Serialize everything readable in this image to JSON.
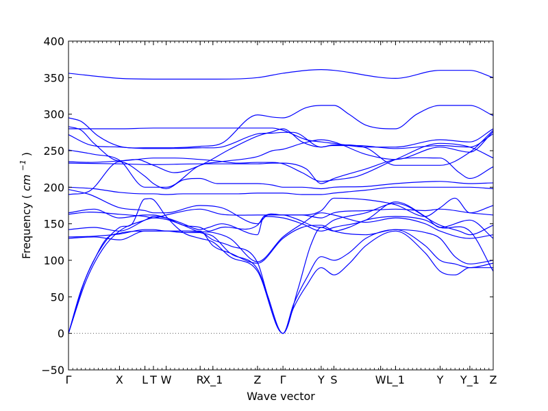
{
  "chart_data": {
    "type": "line",
    "title": "",
    "xlabel": "Wave vector",
    "ylabel": "Frequency",
    "ylabel_unit_base": "cm",
    "ylabel_unit_exp": "−1",
    "ylim": [
      -50,
      400
    ],
    "y_ticks": [
      -50,
      0,
      50,
      100,
      150,
      200,
      250,
      300,
      350,
      400
    ],
    "k_points": [
      {
        "label": "Γ",
        "x": 0.0
      },
      {
        "label": "X",
        "x": 12.0
      },
      {
        "label": "L",
        "x": 18.0
      },
      {
        "label": "T",
        "x": 20.0
      },
      {
        "label": "W",
        "x": 23.0
      },
      {
        "label": "R",
        "x": 31.0
      },
      {
        "label": "X_1",
        "x": 34.0
      },
      {
        "label": "Z",
        "x": 44.5
      },
      {
        "label": "Γ",
        "x": 50.5
      },
      {
        "label": "Y",
        "x": 59.5
      },
      {
        "label": "S",
        "x": 62.5
      },
      {
        "label": "W",
        "x": 73.5
      },
      {
        "label": "L_1",
        "x": 77.0
      },
      {
        "label": "Y",
        "x": 87.5
      },
      {
        "label": "Y_1",
        "x": 94.5
      },
      {
        "label": "Z",
        "x": 100.0
      }
    ],
    "xlim": [
      0,
      100
    ],
    "zero_line": 0,
    "line_color": "#0000ff",
    "zero_line_color": "#555555",
    "series": [
      {
        "x": [
          0,
          12,
          20,
          31,
          44.5,
          50.5,
          59.5,
          62.5,
          77,
          87.5,
          94.5,
          100
        ],
        "values": [
          356,
          349,
          348,
          348,
          350,
          356,
          361,
          360,
          349,
          360,
          360,
          350
        ]
      },
      {
        "x": [
          0,
          3,
          7,
          12,
          18,
          23,
          31,
          36,
          44.5,
          48,
          50.5,
          56,
          59.5,
          62.5,
          66,
          70,
          77,
          82,
          87.5,
          94.5,
          100
        ],
        "values": [
          295,
          290,
          270,
          256,
          254,
          254,
          256,
          260,
          299,
          296,
          295,
          309,
          312,
          312,
          300,
          285,
          280,
          300,
          312,
          312,
          298
        ]
      },
      {
        "x": [
          0,
          12,
          20,
          31,
          44.5,
          48,
          50.5,
          56,
          59.5,
          62.5,
          70,
          77,
          87.5,
          94.5,
          100
        ],
        "values": [
          280,
          280,
          281,
          281,
          281,
          281,
          278,
          265,
          262,
          260,
          255,
          255,
          265,
          262,
          280
        ]
      },
      {
        "x": [
          0,
          3,
          6,
          12,
          16,
          20,
          25,
          31,
          35,
          40,
          44.5,
          48,
          50.5,
          55,
          59.5,
          62.5,
          68,
          77,
          87.5,
          94.5,
          100
        ],
        "values": [
          283,
          278,
          260,
          236,
          238,
          240,
          240,
          238,
          236,
          233,
          234,
          234,
          232,
          220,
          208,
          210,
          215,
          238,
          260,
          255,
          240
        ]
      },
      {
        "x": [
          0,
          5,
          12,
          18,
          23,
          31,
          36,
          44.5,
          48,
          50.5,
          53,
          59.5,
          62,
          68,
          77,
          87.5,
          94.5,
          100
        ],
        "values": [
          272,
          258,
          255,
          253,
          253,
          254,
          255,
          273,
          274,
          275,
          275,
          255,
          257,
          257,
          253,
          257,
          255,
          273
        ]
      },
      {
        "x": [
          0,
          6,
          12,
          18,
          23,
          31,
          36,
          44.5,
          48,
          50.5,
          55,
          59.5,
          62.5,
          70,
          77,
          87.5,
          94.5,
          100
        ],
        "values": [
          251,
          245,
          237,
          200,
          200,
          230,
          235,
          242,
          250,
          252,
          260,
          265,
          262,
          245,
          238,
          255,
          248,
          276
        ]
      },
      {
        "x": [
          0,
          12,
          20,
          31,
          44.5,
          48,
          50.5,
          56,
          59.5,
          62.5,
          70,
          77,
          87.5,
          92,
          94.5,
          100
        ],
        "values": [
          233,
          232,
          231,
          232,
          232,
          233,
          233,
          225,
          205,
          212,
          225,
          238,
          240,
          220,
          212,
          228
        ]
      },
      {
        "x": [
          0,
          5,
          12,
          16,
          20,
          25,
          31,
          38,
          44.5,
          48,
          50.5,
          55,
          59.5,
          62.5,
          70,
          77,
          87.5,
          94.5,
          100
        ],
        "values": [
          235,
          234,
          236,
          238,
          230,
          220,
          230,
          252,
          270,
          276,
          280,
          262,
          255,
          258,
          254,
          230,
          230,
          248,
          278
        ]
      },
      {
        "x": [
          0,
          5,
          12,
          18,
          20,
          23,
          27,
          31,
          35,
          44.5,
          48,
          50.5,
          55,
          59.5,
          62.5,
          70,
          77,
          87.5,
          94.5,
          100
        ],
        "values": [
          190,
          195,
          235,
          215,
          205,
          198,
          210,
          212,
          205,
          205,
          203,
          200,
          200,
          198,
          200,
          201,
          205,
          208,
          205,
          206
        ]
      },
      {
        "x": [
          0,
          6,
          12,
          18,
          20,
          23,
          27,
          31,
          40,
          44.5,
          50.5,
          55,
          59.5,
          62.5,
          70,
          77,
          87.5,
          94.5,
          100
        ],
        "values": [
          200,
          198,
          193,
          191,
          191,
          190,
          191,
          191,
          191,
          192,
          192,
          190,
          190,
          192,
          196,
          200,
          200,
          200,
          198
        ]
      },
      {
        "x": [
          0,
          5,
          12,
          18,
          20,
          23,
          31,
          36,
          44.5,
          47,
          50.5,
          53,
          59.5,
          62.5,
          70,
          77,
          87.5,
          92,
          94.5,
          100
        ],
        "values": [
          197,
          190,
          172,
          168,
          165,
          165,
          175,
          172,
          150,
          162,
          162,
          158,
          145,
          155,
          165,
          178,
          148,
          140,
          135,
          148
        ]
      },
      {
        "x": [
          0,
          5,
          12,
          18,
          20,
          23,
          31,
          36,
          44.5,
          50.5,
          55,
          59.5,
          62.5,
          70,
          77,
          84,
          87.5,
          94.5,
          100
        ],
        "values": [
          163,
          166,
          163,
          160,
          158,
          162,
          170,
          163,
          162,
          162,
          162,
          158,
          165,
          168,
          170,
          168,
          170,
          165,
          162
        ]
      },
      {
        "x": [
          0,
          6,
          12,
          18,
          20,
          23,
          27,
          31,
          33,
          36,
          44.5,
          46,
          50.5,
          55,
          59.5,
          62.5,
          70,
          77,
          84,
          87.5,
          91,
          94.5,
          100
        ],
        "values": [
          165,
          170,
          158,
          162,
          162,
          158,
          148,
          145,
          140,
          145,
          148,
          160,
          162,
          162,
          168,
          185,
          183,
          176,
          160,
          172,
          185,
          165,
          175
        ]
      },
      {
        "x": [
          0,
          6,
          12,
          18,
          20,
          23,
          27,
          31,
          33,
          36,
          44.5,
          46,
          50.5,
          55,
          59.5,
          62.5,
          70,
          77,
          84,
          87.5,
          94.5,
          100
        ],
        "values": [
          142,
          145,
          140,
          155,
          160,
          158,
          150,
          142,
          145,
          150,
          135,
          160,
          158,
          150,
          140,
          145,
          155,
          180,
          160,
          145,
          155,
          130
        ]
      },
      {
        "x": [
          0,
          6,
          12,
          18,
          20,
          23,
          27,
          31,
          34,
          38,
          44.5,
          50.5,
          55,
          59.5,
          62.5,
          70,
          77,
          84,
          87.5,
          94.5,
          100
        ],
        "values": [
          132,
          133,
          136,
          142,
          142,
          140,
          140,
          139,
          138,
          130,
          98,
          132,
          150,
          165,
          162,
          152,
          158,
          150,
          140,
          130,
          135
        ]
      },
      {
        "x": [
          0,
          6,
          12,
          18,
          20,
          23,
          27,
          31,
          34,
          38,
          44.5,
          50.5,
          55,
          59.5,
          62.5,
          70,
          77,
          84,
          87.5,
          91,
          94.5,
          100
        ],
        "values": [
          130,
          132,
          128,
          140,
          140,
          140,
          140,
          140,
          120,
          110,
          96,
          130,
          145,
          148,
          140,
          135,
          142,
          138,
          130,
          105,
          95,
          100
        ]
      },
      {
        "x": [
          0,
          4,
          8,
          12,
          18,
          20,
          23,
          27,
          31,
          34,
          38,
          44.5,
          50.5,
          53,
          56,
          59.5,
          62.5,
          66,
          70,
          77,
          84,
          87.5,
          91,
          94.5,
          100
        ],
        "values": [
          0,
          70,
          115,
          140,
          155,
          158,
          156,
          148,
          138,
          133,
          110,
          88,
          0,
          40,
          75,
          105,
          100,
          110,
          130,
          142,
          120,
          100,
          95,
          90,
          96
        ]
      },
      {
        "x": [
          0,
          4,
          8,
          12,
          15,
          18,
          20,
          23,
          27,
          31,
          34,
          38,
          44.5,
          50.5,
          53,
          56,
          59.5,
          62.5,
          66,
          70,
          77,
          84,
          87.5,
          91,
          94.5,
          100
        ],
        "values": [
          0,
          75,
          120,
          145,
          150,
          184,
          183,
          160,
          138,
          130,
          125,
          105,
          85,
          0,
          35,
          65,
          90,
          80,
          95,
          120,
          140,
          110,
          85,
          80,
          90,
          90
        ]
      },
      {
        "x": [
          0,
          3,
          6,
          9,
          12,
          18,
          23,
          27,
          31,
          34,
          38,
          44.5,
          47,
          50.5,
          54,
          57,
          59.5,
          62.5,
          66,
          70,
          77,
          84,
          87.5,
          94.5,
          100
        ],
        "values": [
          0,
          60,
          100,
          130,
          137,
          140,
          140,
          138,
          138,
          128,
          120,
          97,
          50,
          0,
          60,
          120,
          145,
          140,
          145,
          155,
          160,
          155,
          145,
          140,
          85
        ]
      }
    ]
  }
}
